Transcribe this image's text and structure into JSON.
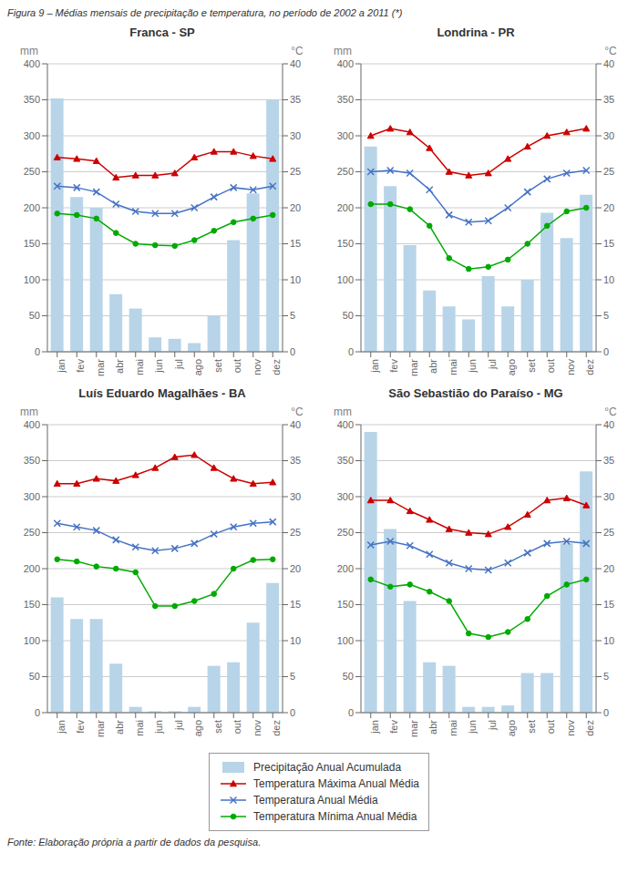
{
  "title": "Figura 9 – Médias mensais de precipitação e temperatura, no período de 2002 a 2011 (*)",
  "annotations": [
    "Fonte: Elaboração própria a partir de dados da pesquisa."
  ],
  "legend": "bottom",
  "chart_data": [
    {
      "type": "bar",
      "title": "Franca - SP",
      "categories": [
        "jan",
        "fev",
        "mar",
        "abr",
        "mai",
        "jun",
        "jul",
        "ago",
        "set",
        "out",
        "nov",
        "dez"
      ],
      "ylabel": "mm",
      "y2label": "°C",
      "ylim": [
        0,
        400
      ],
      "yticks": [
        0,
        50,
        100,
        150,
        200,
        250,
        300,
        350,
        400
      ],
      "y2lim": [
        0,
        40
      ],
      "y2ticks": [
        0,
        5,
        10,
        15,
        20,
        25,
        30,
        35,
        40
      ],
      "grid": true,
      "series": [
        {
          "name": "Precipitação Anual Acumulada",
          "type": "bar",
          "color": "#b8d4e8",
          "values": [
            352,
            215,
            200,
            80,
            60,
            20,
            18,
            12,
            50,
            155,
            220,
            350
          ]
        },
        {
          "name": "Temperatura Máxima Anual Média",
          "type": "line",
          "axis": "y2",
          "color": "#cc0000",
          "marker": "triangle",
          "values": [
            27.0,
            26.8,
            26.5,
            24.2,
            24.5,
            24.5,
            24.8,
            27.0,
            27.8,
            27.8,
            27.2,
            26.8
          ]
        },
        {
          "name": "Temperatura Anual Média",
          "type": "line",
          "axis": "y2",
          "color": "#4472c4",
          "marker": "x",
          "values": [
            23.0,
            22.8,
            22.2,
            20.5,
            19.5,
            19.2,
            19.2,
            20.0,
            21.5,
            22.8,
            22.5,
            23.0
          ]
        },
        {
          "name": "Temperatura Mínima Anual Média",
          "type": "line",
          "axis": "y2",
          "color": "#00aa00",
          "marker": "circle",
          "values": [
            19.2,
            19.0,
            18.5,
            16.5,
            15.0,
            14.8,
            14.7,
            15.5,
            16.8,
            18.0,
            18.5,
            19.0
          ]
        }
      ]
    },
    {
      "type": "bar",
      "title": "Londrina - PR",
      "categories": [
        "jan",
        "fev",
        "mar",
        "abr",
        "mai",
        "jun",
        "jul",
        "ago",
        "set",
        "out",
        "nov",
        "dez"
      ],
      "ylabel": "mm",
      "y2label": "°C",
      "ylim": [
        0,
        400
      ],
      "yticks": [
        0,
        50,
        100,
        150,
        200,
        250,
        300,
        350,
        400
      ],
      "y2lim": [
        0,
        40
      ],
      "y2ticks": [
        0,
        5,
        10,
        15,
        20,
        25,
        30,
        35,
        40
      ],
      "grid": true,
      "series": [
        {
          "name": "Precipitação Anual Acumulada",
          "type": "bar",
          "color": "#b8d4e8",
          "values": [
            285,
            230,
            148,
            85,
            63,
            45,
            105,
            63,
            100,
            193,
            158,
            218
          ]
        },
        {
          "name": "Temperatura Máxima Anual Média",
          "type": "line",
          "axis": "y2",
          "color": "#cc0000",
          "marker": "triangle",
          "values": [
            30.0,
            31.0,
            30.5,
            28.3,
            25.0,
            24.5,
            24.8,
            26.8,
            28.5,
            30.0,
            30.5,
            31.0
          ]
        },
        {
          "name": "Temperatura Anual Média",
          "type": "line",
          "axis": "y2",
          "color": "#4472c4",
          "marker": "x",
          "values": [
            25.0,
            25.2,
            24.8,
            22.5,
            19.0,
            18.0,
            18.2,
            20.0,
            22.2,
            24.0,
            24.8,
            25.2
          ]
        },
        {
          "name": "Temperatura Mínima Anual Média",
          "type": "line",
          "axis": "y2",
          "color": "#00aa00",
          "marker": "circle",
          "values": [
            20.5,
            20.5,
            19.8,
            17.5,
            13.0,
            11.5,
            11.8,
            12.8,
            15.0,
            17.5,
            19.5,
            20.0
          ]
        }
      ]
    },
    {
      "type": "bar",
      "title": "Luís Eduardo Magalhães - BA",
      "categories": [
        "jan",
        "fev",
        "mar",
        "abr",
        "mai",
        "jun",
        "jul",
        "ago",
        "set",
        "out",
        "nov",
        "dez"
      ],
      "ylabel": "mm",
      "y2label": "°C",
      "ylim": [
        0,
        400
      ],
      "yticks": [
        0,
        50,
        100,
        150,
        200,
        250,
        300,
        350,
        400
      ],
      "y2lim": [
        0,
        40
      ],
      "y2ticks": [
        0,
        5,
        10,
        15,
        20,
        25,
        30,
        35,
        40
      ],
      "grid": true,
      "series": [
        {
          "name": "Precipitação Anual Acumulada",
          "type": "bar",
          "color": "#b8d4e8",
          "values": [
            160,
            130,
            130,
            68,
            8,
            2,
            2,
            8,
            65,
            70,
            125,
            180
          ]
        },
        {
          "name": "Temperatura Máxima Anual Média",
          "type": "line",
          "axis": "y2",
          "color": "#cc0000",
          "marker": "triangle",
          "values": [
            31.8,
            31.8,
            32.5,
            32.2,
            33.0,
            34.0,
            35.5,
            35.8,
            34.0,
            32.5,
            31.8,
            32.0
          ]
        },
        {
          "name": "Temperatura Anual Média",
          "type": "line",
          "axis": "y2",
          "color": "#4472c4",
          "marker": "x",
          "values": [
            26.3,
            25.8,
            25.3,
            24.0,
            23.0,
            22.5,
            22.8,
            23.5,
            24.8,
            25.8,
            26.3,
            26.5
          ]
        },
        {
          "name": "Temperatura Mínima Anual Média",
          "type": "line",
          "axis": "y2",
          "color": "#00aa00",
          "marker": "circle",
          "values": [
            21.3,
            21.0,
            20.3,
            20.0,
            19.5,
            14.8,
            14.8,
            15.5,
            16.5,
            20.0,
            21.2,
            21.3
          ]
        }
      ]
    },
    {
      "type": "bar",
      "title": "São Sebastião do Paraíso - MG",
      "categories": [
        "jan",
        "fev",
        "mar",
        "abr",
        "mai",
        "jun",
        "jul",
        "ago",
        "set",
        "out",
        "nov",
        "dez"
      ],
      "ylabel": "mm",
      "y2label": "°C",
      "ylim": [
        0,
        400
      ],
      "yticks": [
        0,
        50,
        100,
        150,
        200,
        250,
        300,
        350,
        400
      ],
      "y2lim": [
        0,
        40
      ],
      "y2ticks": [
        0,
        5,
        10,
        15,
        20,
        25,
        30,
        35,
        40
      ],
      "grid": true,
      "series": [
        {
          "name": "Precipitação Anual Acumulada",
          "type": "bar",
          "color": "#b8d4e8",
          "values": [
            390,
            255,
            155,
            70,
            65,
            8,
            8,
            10,
            55,
            55,
            235,
            335
          ]
        },
        {
          "name": "Temperatura Máxima Anual Média",
          "type": "line",
          "axis": "y2",
          "color": "#cc0000",
          "marker": "triangle",
          "values": [
            29.5,
            29.5,
            28.0,
            26.8,
            25.5,
            25.0,
            24.8,
            25.8,
            27.5,
            29.5,
            29.8,
            28.8
          ]
        },
        {
          "name": "Temperatura Anual Média",
          "type": "line",
          "axis": "y2",
          "color": "#4472c4",
          "marker": "x",
          "values": [
            23.3,
            23.8,
            23.2,
            22.0,
            20.8,
            20.0,
            19.8,
            20.8,
            22.2,
            23.5,
            23.8,
            23.5
          ]
        },
        {
          "name": "Temperatura Mínima Anual Média",
          "type": "line",
          "axis": "y2",
          "color": "#00aa00",
          "marker": "circle",
          "values": [
            18.5,
            17.5,
            17.8,
            16.8,
            15.5,
            11.0,
            10.5,
            11.2,
            13.0,
            16.2,
            17.8,
            18.5
          ]
        }
      ]
    }
  ]
}
